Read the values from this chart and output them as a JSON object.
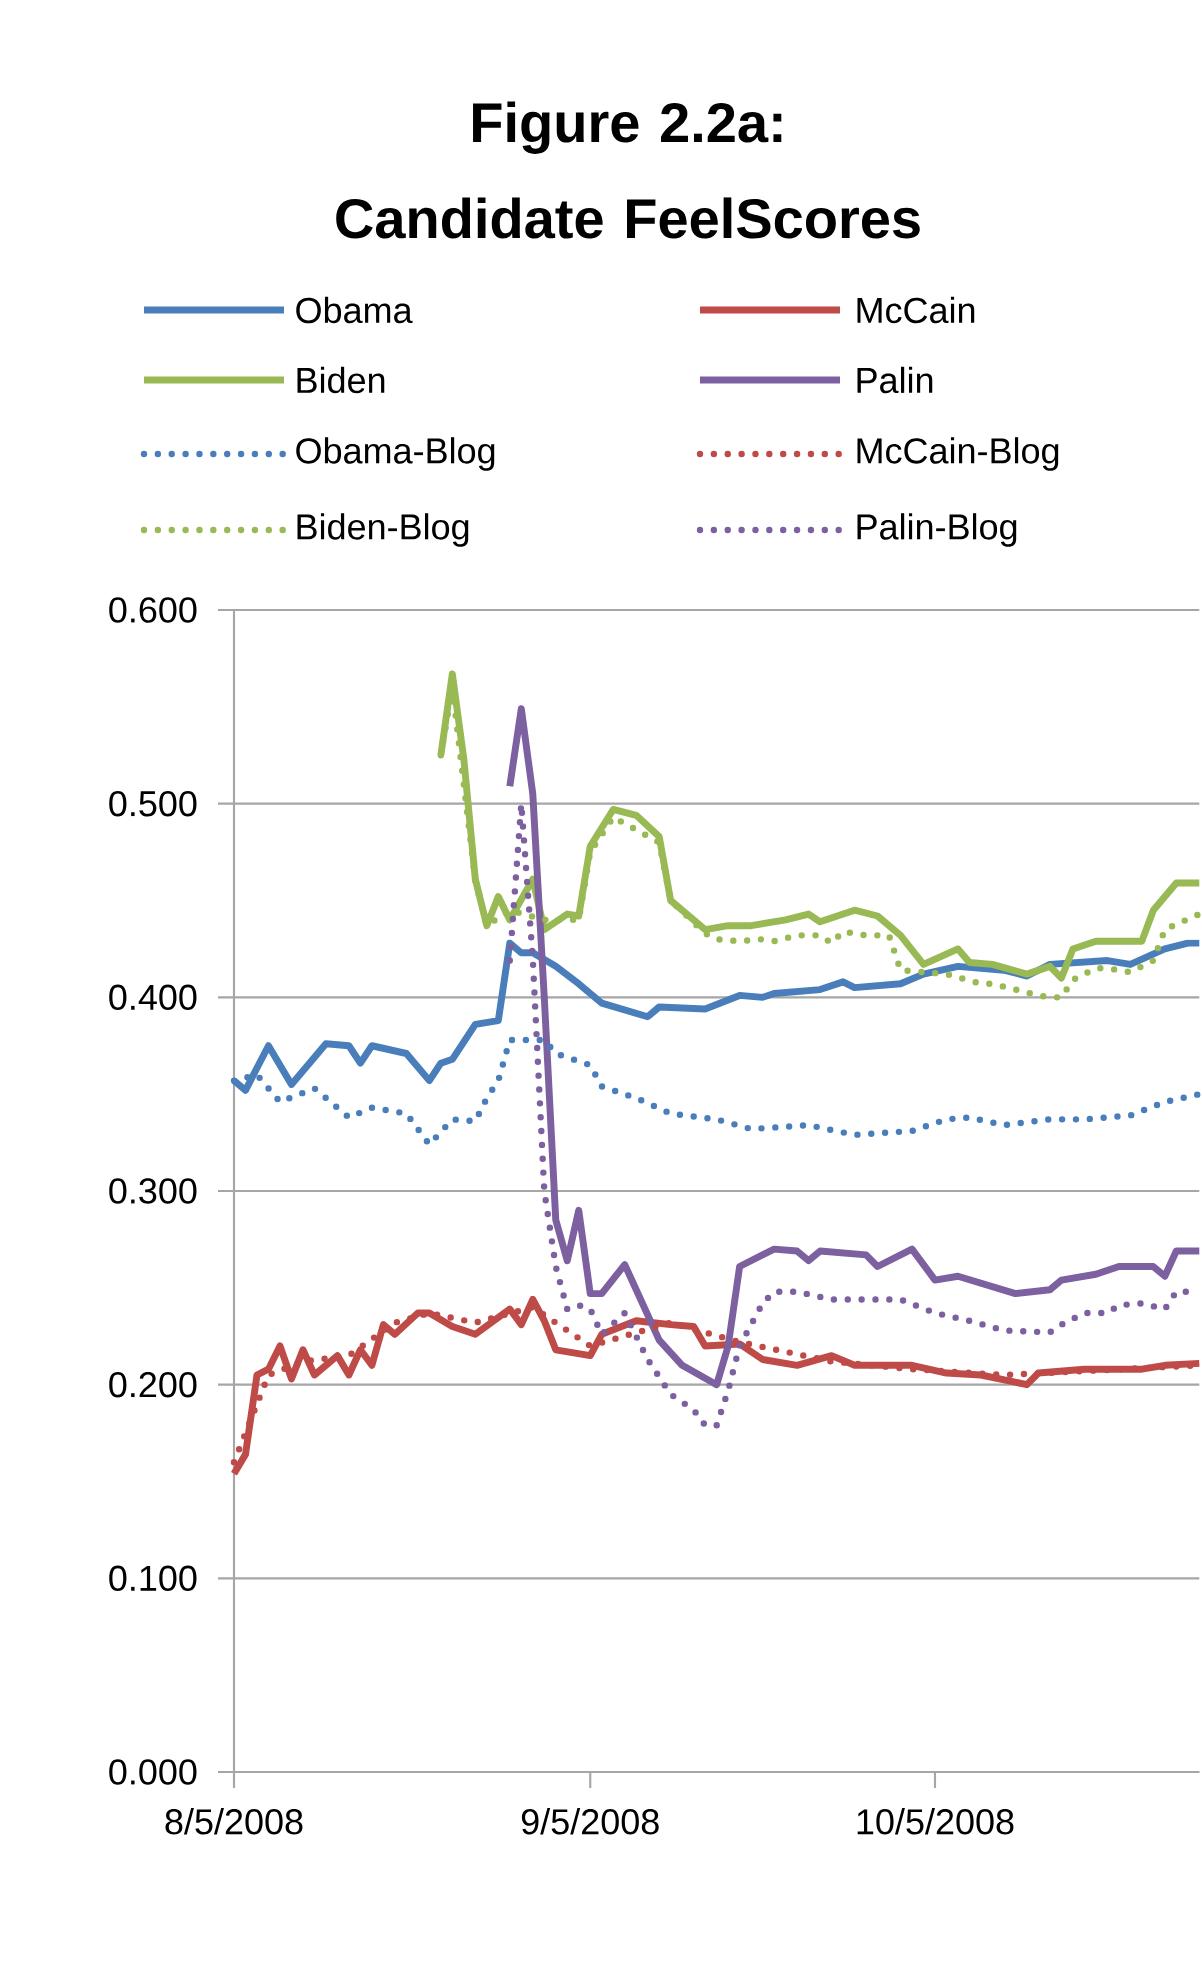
{
  "chart_data": {
    "type": "line",
    "title": "Figure 2.2a: Candidate FeelScores",
    "xlim": [
      "2008-08-05",
      "2008-10-28"
    ],
    "xticks": [
      {
        "value": "2008-08-05",
        "label": "8/5/2008"
      },
      {
        "value": "2008-09-05",
        "label": "9/5/2008"
      },
      {
        "value": "2008-10-05",
        "label": "10/5/2008"
      }
    ],
    "ylim": [
      0,
      0.6
    ],
    "yticks": [
      {
        "value": 0,
        "label": "0.000"
      },
      {
        "value": 0.1,
        "label": "0.100"
      },
      {
        "value": 0.2,
        "label": "0.200"
      },
      {
        "value": 0.3,
        "label": "0.300"
      },
      {
        "value": 0.4,
        "label": "0.400"
      },
      {
        "value": 0.5,
        "label": "0.500"
      },
      {
        "value": 0.6,
        "label": "0.600"
      }
    ],
    "grid": "y",
    "legend": "top",
    "marker": "none",
    "series": [
      {
        "name": "Obama",
        "color": "#4a7ebb",
        "line_style": "solid",
        "x": [
          "2008-08-05",
          "2008-08-06",
          "2008-08-08",
          "2008-08-10",
          "2008-08-13",
          "2008-08-15",
          "2008-08-16",
          "2008-08-17",
          "2008-08-20",
          "2008-08-22",
          "2008-08-23",
          "2008-08-24",
          "2008-08-26",
          "2008-08-28",
          "2008-08-29",
          "2008-08-30",
          "2008-08-31",
          "2008-09-02",
          "2008-09-04",
          "2008-09-06",
          "2008-09-10",
          "2008-09-11",
          "2008-09-15",
          "2008-09-18",
          "2008-09-20",
          "2008-09-21",
          "2008-09-25",
          "2008-09-27",
          "2008-09-28",
          "2008-10-02",
          "2008-10-04",
          "2008-10-07",
          "2008-10-11",
          "2008-10-13",
          "2008-10-15",
          "2008-10-20",
          "2008-10-22",
          "2008-10-25",
          "2008-10-27",
          "2008-10-28"
        ],
        "values": [
          0.357,
          0.352,
          0.375,
          0.355,
          0.376,
          0.375,
          0.366,
          0.375,
          0.371,
          0.357,
          0.366,
          0.368,
          0.386,
          0.388,
          0.428,
          0.423,
          0.423,
          0.416,
          0.407,
          0.397,
          0.39,
          0.395,
          0.394,
          0.401,
          0.4,
          0.402,
          0.404,
          0.408,
          0.405,
          0.407,
          0.412,
          0.416,
          0.414,
          0.411,
          0.417,
          0.419,
          0.417,
          0.425,
          0.428,
          0.428
        ]
      },
      {
        "name": "McCain",
        "color": "#be4b48",
        "line_style": "solid",
        "x": [
          "2008-08-05",
          "2008-08-06",
          "2008-08-07",
          "2008-08-08",
          "2008-08-09",
          "2008-08-10",
          "2008-08-11",
          "2008-08-12",
          "2008-08-14",
          "2008-08-15",
          "2008-08-16",
          "2008-08-17",
          "2008-08-18",
          "2008-08-19",
          "2008-08-21",
          "2008-08-22",
          "2008-08-24",
          "2008-08-26",
          "2008-08-29",
          "2008-08-30",
          "2008-08-31",
          "2008-09-01",
          "2008-09-02",
          "2008-09-05",
          "2008-09-06",
          "2008-09-09",
          "2008-09-12",
          "2008-09-14",
          "2008-09-15",
          "2008-09-18",
          "2008-09-20",
          "2008-09-23",
          "2008-09-26",
          "2008-09-28",
          "2008-09-30",
          "2008-10-03",
          "2008-10-06",
          "2008-10-09",
          "2008-10-13",
          "2008-10-14",
          "2008-10-18",
          "2008-10-23",
          "2008-10-25",
          "2008-10-28"
        ],
        "values": [
          0.154,
          0.164,
          0.205,
          0.208,
          0.22,
          0.203,
          0.218,
          0.205,
          0.215,
          0.205,
          0.218,
          0.21,
          0.231,
          0.226,
          0.237,
          0.237,
          0.23,
          0.226,
          0.239,
          0.231,
          0.244,
          0.233,
          0.218,
          0.215,
          0.226,
          0.233,
          0.231,
          0.23,
          0.22,
          0.221,
          0.213,
          0.21,
          0.215,
          0.21,
          0.21,
          0.21,
          0.206,
          0.205,
          0.2,
          0.206,
          0.208,
          0.208,
          0.21,
          0.211
        ]
      },
      {
        "name": "Biden",
        "color": "#98b954",
        "line_style": "solid",
        "x": [
          "2008-08-23",
          "2008-08-24",
          "2008-08-25",
          "2008-08-26",
          "2008-08-27",
          "2008-08-28",
          "2008-08-29",
          "2008-08-31",
          "2008-09-01",
          "2008-09-03",
          "2008-09-04",
          "2008-09-05",
          "2008-09-07",
          "2008-09-09",
          "2008-09-11",
          "2008-09-12",
          "2008-09-13",
          "2008-09-15",
          "2008-09-17",
          "2008-09-19",
          "2008-09-22",
          "2008-09-24",
          "2008-09-25",
          "2008-09-28",
          "2008-09-30",
          "2008-10-02",
          "2008-10-04",
          "2008-10-07",
          "2008-10-08",
          "2008-10-10",
          "2008-10-13",
          "2008-10-15",
          "2008-10-16",
          "2008-10-17",
          "2008-10-19",
          "2008-10-23",
          "2008-10-24",
          "2008-10-26",
          "2008-10-28"
        ],
        "values": [
          0.525,
          0.567,
          0.523,
          0.461,
          0.437,
          0.452,
          0.44,
          0.461,
          0.435,
          0.443,
          0.442,
          0.478,
          0.497,
          0.494,
          0.483,
          0.45,
          0.445,
          0.435,
          0.437,
          0.437,
          0.44,
          0.443,
          0.439,
          0.445,
          0.442,
          0.432,
          0.417,
          0.425,
          0.418,
          0.417,
          0.412,
          0.416,
          0.41,
          0.425,
          0.429,
          0.429,
          0.445,
          0.459,
          0.459
        ]
      },
      {
        "name": "Palin",
        "color": "#7d60a0",
        "line_style": "solid",
        "x": [
          "2008-08-29",
          "2008-08-30",
          "2008-08-31",
          "2008-09-01",
          "2008-09-02",
          "2008-09-03",
          "2008-09-04",
          "2008-09-05",
          "2008-09-06",
          "2008-09-08",
          "2008-09-11",
          "2008-09-13",
          "2008-09-16",
          "2008-09-17",
          "2008-09-18",
          "2008-09-21",
          "2008-09-23",
          "2008-09-24",
          "2008-09-25",
          "2008-09-29",
          "2008-09-30",
          "2008-10-03",
          "2008-10-05",
          "2008-10-07",
          "2008-10-12",
          "2008-10-15",
          "2008-10-16",
          "2008-10-19",
          "2008-10-21",
          "2008-10-24",
          "2008-10-25",
          "2008-10-26",
          "2008-10-28"
        ],
        "values": [
          0.509,
          0.549,
          0.505,
          0.4,
          0.285,
          0.264,
          0.29,
          0.247,
          0.247,
          0.262,
          0.223,
          0.21,
          0.2,
          0.22,
          0.261,
          0.27,
          0.269,
          0.264,
          0.269,
          0.267,
          0.261,
          0.27,
          0.254,
          0.256,
          0.247,
          0.249,
          0.254,
          0.257,
          0.261,
          0.261,
          0.256,
          0.269,
          0.269
        ]
      },
      {
        "name": "Obama-Blog",
        "color": "#4a7ebb",
        "line_style": "dotted",
        "x": [
          "2008-08-05",
          "2008-08-07",
          "2008-08-09",
          "2008-08-12",
          "2008-08-15",
          "2008-08-17",
          "2008-08-20",
          "2008-08-22",
          "2008-08-24",
          "2008-08-26",
          "2008-08-27",
          "2008-08-28",
          "2008-08-29",
          "2008-08-30",
          "2008-09-01",
          "2008-09-02",
          "2008-09-05",
          "2008-09-06",
          "2008-09-09",
          "2008-09-12",
          "2008-09-16",
          "2008-09-19",
          "2008-09-24",
          "2008-09-28",
          "2008-10-03",
          "2008-10-06",
          "2008-10-08",
          "2008-10-11",
          "2008-10-15",
          "2008-10-18",
          "2008-10-22",
          "2008-10-25",
          "2008-10-28"
        ],
        "values": [
          0.357,
          0.36,
          0.346,
          0.353,
          0.338,
          0.343,
          0.34,
          0.324,
          0.337,
          0.336,
          0.348,
          0.357,
          0.378,
          0.378,
          0.378,
          0.371,
          0.365,
          0.354,
          0.348,
          0.34,
          0.337,
          0.332,
          0.334,
          0.329,
          0.331,
          0.337,
          0.338,
          0.334,
          0.337,
          0.337,
          0.339,
          0.346,
          0.35
        ]
      },
      {
        "name": "McCain-Blog",
        "color": "#be4b48",
        "line_style": "dotted",
        "x": [
          "2008-08-05",
          "2008-08-08",
          "2008-08-11",
          "2008-08-15",
          "2008-08-19",
          "2008-08-22",
          "2008-08-26",
          "2008-08-31",
          "2008-09-05",
          "2008-09-12",
          "2008-09-18",
          "2008-09-26",
          "2008-10-03",
          "2008-10-11",
          "2008-10-18",
          "2008-10-28"
        ],
        "values": [
          0.16,
          0.205,
          0.212,
          0.215,
          0.232,
          0.237,
          0.232,
          0.24,
          0.22,
          0.232,
          0.222,
          0.212,
          0.208,
          0.205,
          0.207,
          0.21
        ]
      },
      {
        "name": "Biden-Blog",
        "color": "#98b954",
        "line_style": "dotted",
        "x": [
          "2008-08-23",
          "2008-08-24",
          "2008-08-26",
          "2008-08-27",
          "2008-08-29",
          "2008-09-01",
          "2008-09-04",
          "2008-09-05",
          "2008-09-07",
          "2008-09-11",
          "2008-09-12",
          "2008-09-15",
          "2008-09-16",
          "2008-09-18",
          "2008-09-20",
          "2008-09-21",
          "2008-09-23",
          "2008-09-25",
          "2008-09-26",
          "2008-09-27",
          "2008-09-29",
          "2008-10-01",
          "2008-10-02",
          "2008-10-06",
          "2008-10-09",
          "2008-10-10",
          "2008-10-12",
          "2008-10-14",
          "2008-10-15",
          "2008-10-16",
          "2008-10-17",
          "2008-10-19",
          "2008-10-20",
          "2008-10-22",
          "2008-10-24",
          "2008-10-25",
          "2008-10-28"
        ],
        "values": [
          0.525,
          0.56,
          0.46,
          0.437,
          0.445,
          0.44,
          0.44,
          0.475,
          0.493,
          0.48,
          0.45,
          0.433,
          0.43,
          0.429,
          0.43,
          0.429,
          0.432,
          0.432,
          0.428,
          0.434,
          0.432,
          0.432,
          0.414,
          0.412,
          0.407,
          0.407,
          0.404,
          0.401,
          0.4,
          0.4,
          0.409,
          0.415,
          0.415,
          0.413,
          0.419,
          0.435,
          0.443
        ]
      },
      {
        "name": "Palin-Blog",
        "color": "#7d60a0",
        "line_style": "dotted",
        "x": [
          "2008-08-29",
          "2008-08-30",
          "2008-08-31",
          "2008-09-01",
          "2008-09-02",
          "2008-09-03",
          "2008-09-04",
          "2008-09-05",
          "2008-09-06",
          "2008-09-08",
          "2008-09-10",
          "2008-09-12",
          "2008-09-14",
          "2008-09-15",
          "2008-09-16",
          "2008-09-17",
          "2008-09-18",
          "2008-09-20",
          "2008-09-21",
          "2008-09-23",
          "2008-09-26",
          "2008-09-29",
          "2008-10-02",
          "2008-10-05",
          "2008-10-08",
          "2008-10-11",
          "2008-10-15",
          "2008-10-16",
          "2008-10-18",
          "2008-10-20",
          "2008-10-21",
          "2008-10-23",
          "2008-10-25",
          "2008-10-26",
          "2008-10-28"
        ],
        "values": [
          0.419,
          0.5,
          0.42,
          0.3,
          0.261,
          0.239,
          0.241,
          0.239,
          0.226,
          0.237,
          0.213,
          0.195,
          0.187,
          0.179,
          0.179,
          0.197,
          0.22,
          0.242,
          0.248,
          0.248,
          0.244,
          0.244,
          0.244,
          0.237,
          0.233,
          0.228,
          0.227,
          0.231,
          0.237,
          0.237,
          0.241,
          0.242,
          0.239,
          0.248,
          0.248
        ]
      }
    ]
  }
}
